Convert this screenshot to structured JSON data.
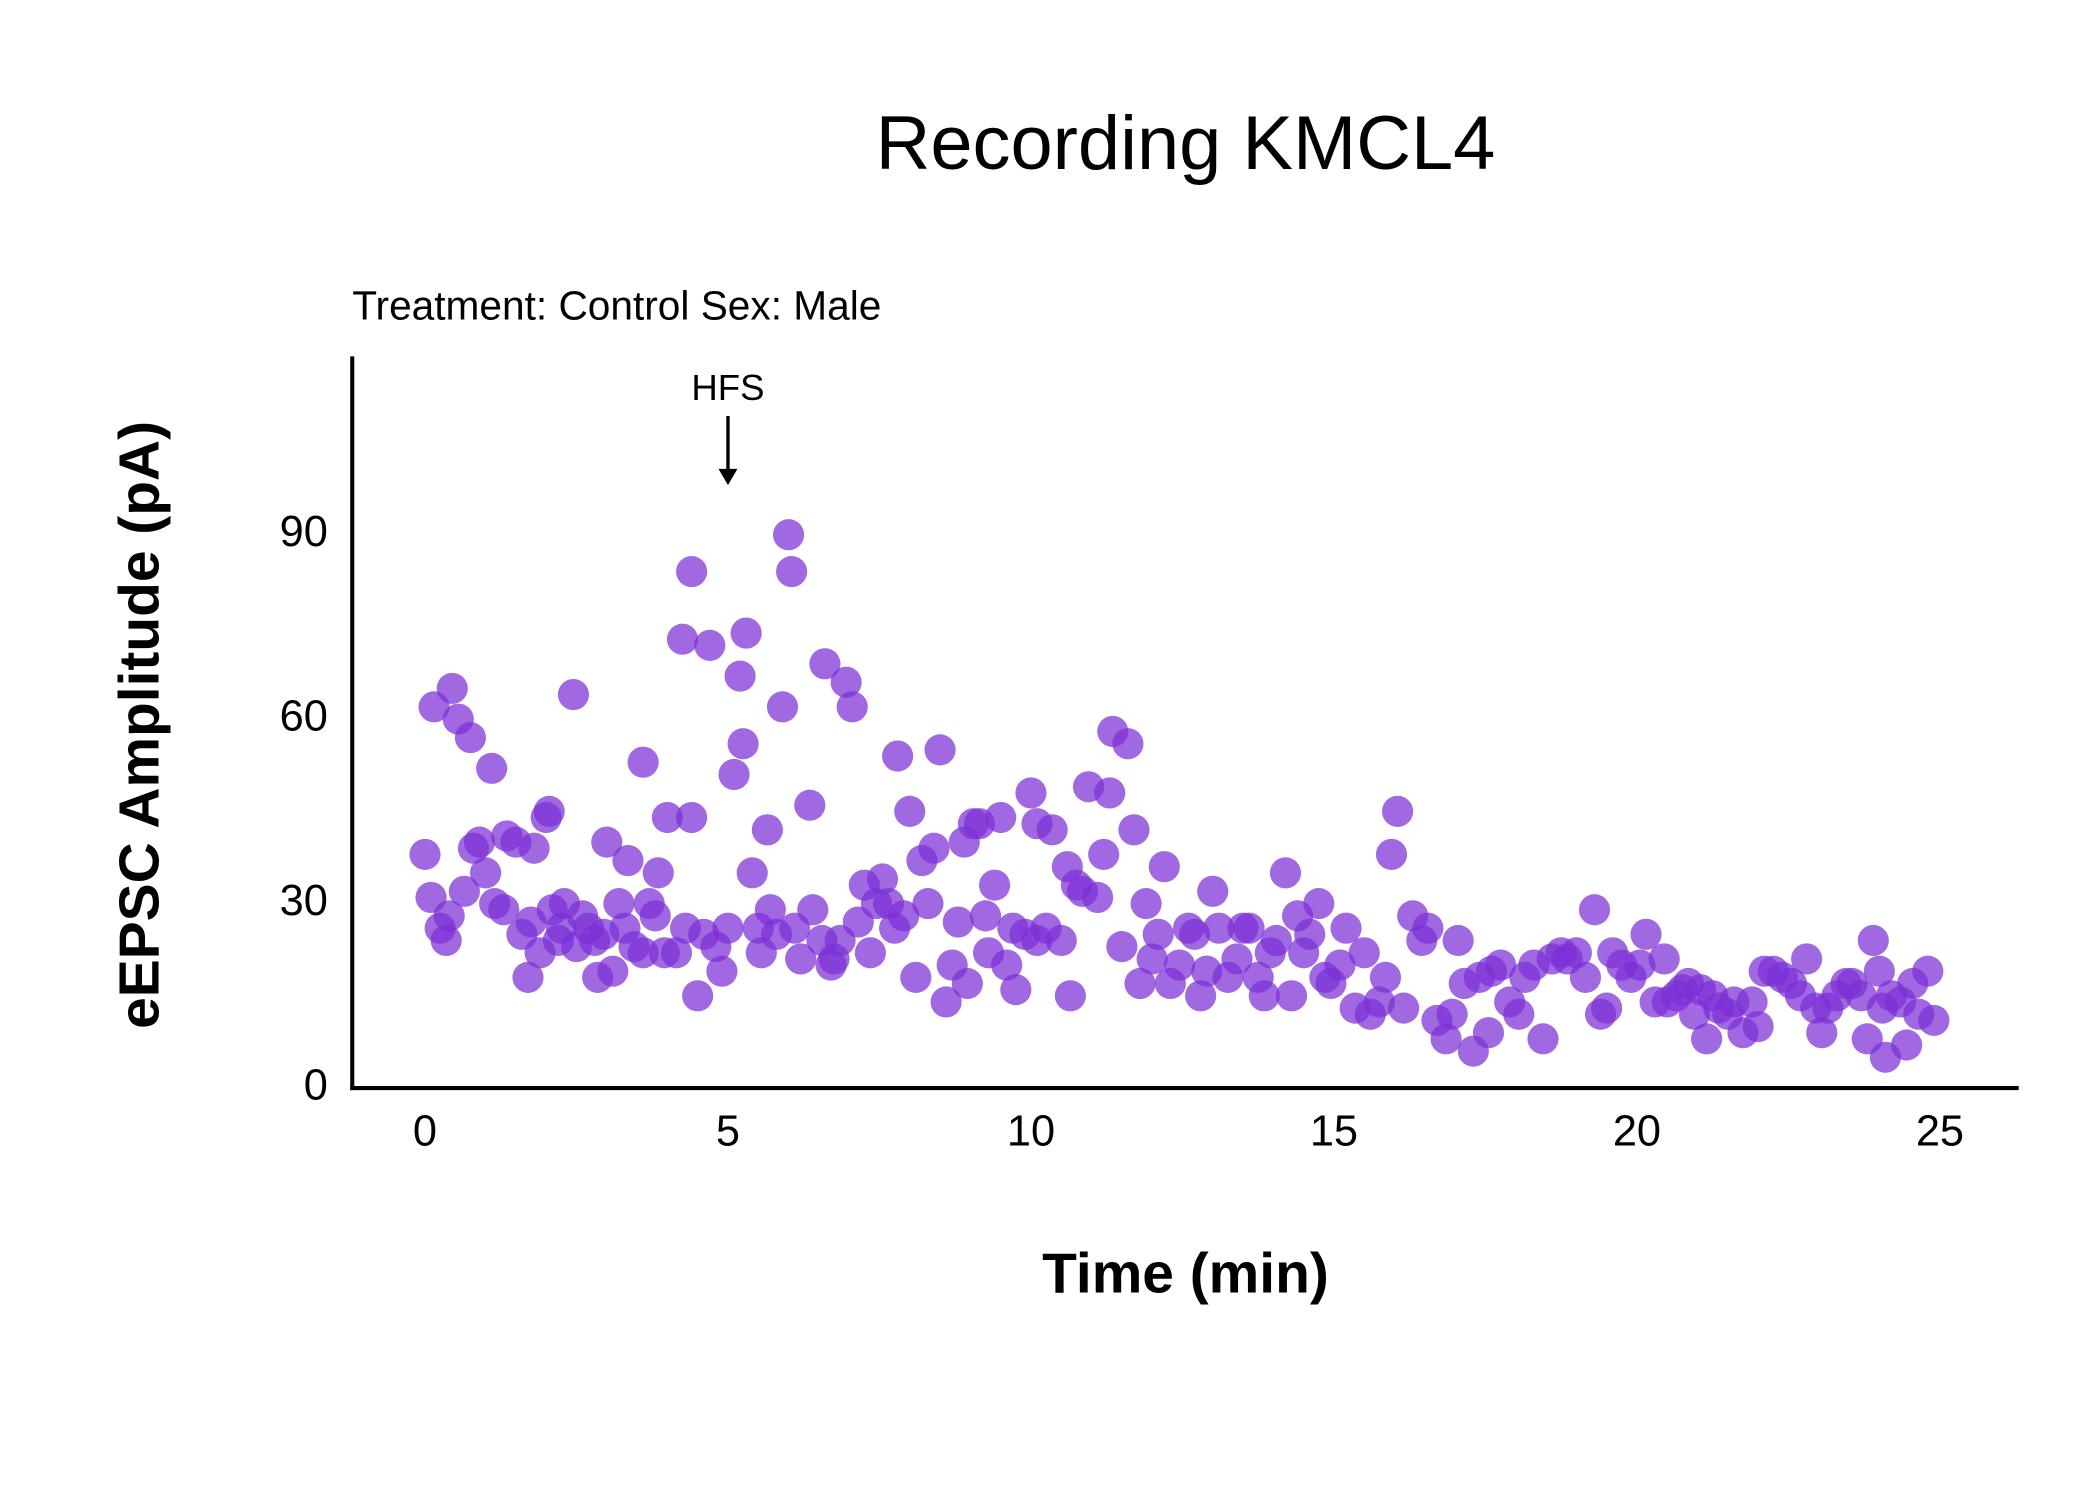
{
  "chart_data": {
    "type": "scatter",
    "title": "Recording KMCL4",
    "subtitle": "Treatment: Control  Sex: Male",
    "x_label": "Time (min)",
    "y_label": "eEPSC Amplitude (pA)",
    "annotation": {
      "text": "HFS",
      "x": 5
    },
    "xlim": [
      -1.2,
      26.3
    ],
    "ylim": [
      0,
      119
    ],
    "xticks": [
      0,
      5,
      10,
      15,
      20,
      25
    ],
    "yticks": [
      0,
      30,
      60,
      90
    ],
    "grid": false,
    "x": [
      0,
      0.1,
      0.15,
      0.25,
      0.35,
      0.45,
      0.4,
      0.55,
      0.65,
      0.75,
      0.8,
      0.9,
      1.0,
      1.1,
      1.15,
      1.3,
      1.35,
      1.5,
      1.6,
      1.7,
      1.75,
      1.8,
      1.9,
      2.0,
      2.05,
      2.1,
      2.2,
      2.25,
      2.3,
      2.45,
      2.5,
      2.6,
      2.7,
      2.8,
      2.85,
      2.95,
      3.0,
      3.1,
      3.2,
      3.3,
      3.35,
      3.45,
      3.6,
      3.6,
      3.7,
      3.8,
      3.85,
      3.95,
      4.0,
      4.15,
      4.3,
      4.4,
      4.25,
      4.4,
      4.5,
      4.6,
      4.7,
      4.8,
      4.9,
      5.0,
      5.1,
      5.2,
      5.25,
      5.3,
      5.4,
      5.5,
      5.55,
      5.65,
      5.7,
      5.8,
      5.9,
      6.0,
      6.05,
      6.1,
      6.2,
      6.35,
      6.4,
      6.55,
      6.6,
      6.7,
      6.75,
      6.85,
      6.95,
      7.05,
      7.15,
      7.25,
      7.35,
      7.45,
      7.55,
      7.65,
      7.75,
      7.8,
      7.9,
      8.0,
      8.1,
      8.2,
      8.3,
      8.4,
      8.5,
      8.6,
      8.7,
      8.8,
      8.9,
      8.95,
      9.05,
      9.15,
      9.25,
      9.3,
      9.4,
      9.5,
      9.6,
      9.7,
      9.75,
      9.9,
      10.0,
      10.1,
      10.1,
      10.25,
      10.35,
      10.5,
      10.6,
      10.65,
      10.75,
      10.85,
      10.95,
      11.1,
      11.2,
      11.3,
      11.35,
      11.5,
      11.6,
      11.7,
      11.8,
      11.9,
      12.0,
      12.1,
      12.2,
      12.3,
      12.45,
      12.6,
      12.7,
      12.8,
      12.9,
      13.0,
      13.1,
      13.25,
      13.4,
      13.5,
      13.6,
      13.75,
      13.85,
      13.95,
      14.05,
      14.2,
      14.3,
      14.4,
      14.5,
      14.6,
      14.75,
      14.85,
      14.95,
      15.1,
      15.2,
      15.35,
      15.5,
      15.6,
      15.75,
      15.85,
      15.95,
      16.05,
      16.15,
      16.3,
      16.45,
      16.55,
      16.7,
      16.85,
      16.95,
      17.05,
      17.15,
      17.3,
      17.4,
      17.55,
      17.6,
      17.75,
      17.9,
      18.05,
      18.15,
      18.3,
      18.45,
      18.6,
      18.75,
      18.85,
      19.0,
      19.15,
      19.3,
      19.4,
      19.5,
      19.6,
      19.75,
      19.9,
      20.05,
      20.15,
      20.3,
      20.45,
      20.5,
      20.65,
      20.75,
      20.85,
      20.95,
      21.05,
      21.15,
      21.25,
      21.35,
      21.5,
      21.6,
      21.75,
      21.9,
      22.0,
      22.1,
      22.25,
      22.4,
      22.55,
      22.7,
      22.8,
      22.95,
      23.05,
      23.15,
      23.3,
      23.45,
      23.55,
      23.7,
      23.8,
      23.9,
      24.0,
      24.05,
      24.1,
      24.2,
      24.35,
      24.45,
      24.55,
      24.65,
      24.8,
      24.9
    ],
    "series": [
      {
        "color": "#7b2fd6",
        "values": [
          38,
          31,
          62,
          26,
          24,
          65,
          28,
          60,
          32,
          57,
          39,
          40,
          35,
          52,
          30,
          29,
          41,
          40,
          25,
          18,
          27,
          39,
          22,
          44,
          45,
          29,
          24,
          26,
          30,
          64,
          23,
          28,
          26,
          24,
          18,
          25,
          40,
          19,
          30,
          26,
          37,
          23,
          22,
          53,
          30,
          28,
          35,
          22,
          44,
          22,
          26,
          44,
          73,
          84,
          15,
          25,
          72,
          23,
          19,
          26,
          51,
          67,
          56,
          74,
          35,
          26,
          22,
          42,
          29,
          25,
          62,
          90,
          84,
          26,
          21,
          46,
          29,
          24,
          69,
          20,
          21,
          24,
          66,
          62,
          27,
          33,
          22,
          30,
          34,
          30,
          26,
          54,
          28,
          45,
          18,
          37,
          30,
          39,
          55,
          14,
          20,
          27,
          40,
          17,
          43,
          43,
          28,
          22,
          33,
          44,
          20,
          26,
          16,
          25,
          48,
          24,
          43,
          26,
          42,
          24,
          36,
          15,
          33,
          32,
          49,
          31,
          38,
          48,
          58,
          23,
          56,
          42,
          17,
          30,
          21,
          25,
          36,
          17,
          20,
          26,
          25,
          15,
          19,
          32,
          26,
          18,
          21,
          26,
          26,
          18,
          15,
          22,
          24,
          35,
          15,
          28,
          22,
          25,
          30,
          18,
          17,
          20,
          26,
          13,
          22,
          12,
          14,
          18,
          38,
          45,
          13,
          28,
          24,
          26,
          11,
          8,
          12,
          24,
          17,
          6,
          18,
          9,
          19,
          20,
          14,
          12,
          18,
          20,
          8,
          21,
          22,
          21,
          22,
          18,
          29,
          12,
          13,
          22,
          20,
          18,
          20,
          25,
          14,
          21,
          14,
          15,
          16,
          17,
          12,
          16,
          8,
          15,
          13,
          12,
          14,
          9,
          14,
          10,
          19,
          19,
          18,
          17,
          15,
          21,
          13,
          9,
          13,
          15,
          17,
          17,
          15,
          8,
          24,
          19,
          13,
          5,
          15,
          14,
          7,
          17,
          12,
          19,
          11
        ]
      }
    ]
  }
}
